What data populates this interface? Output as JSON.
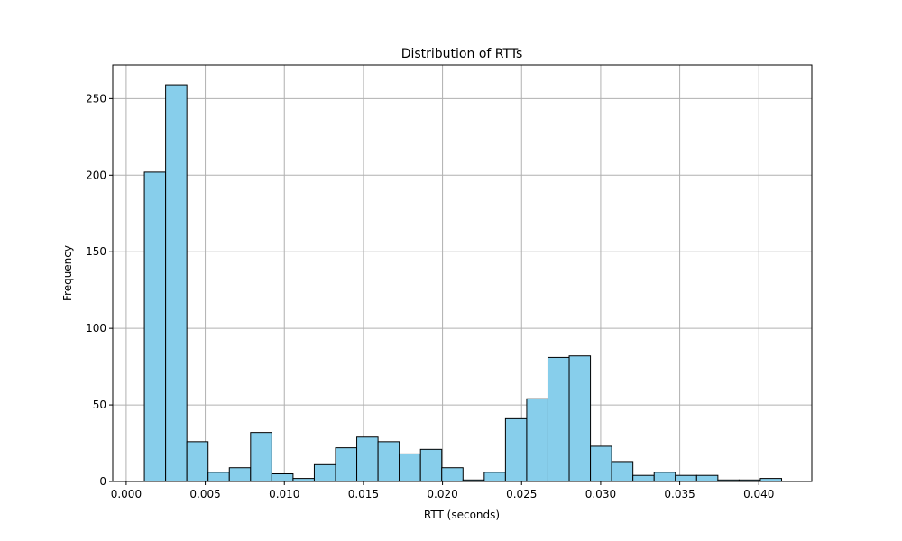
{
  "chart_data": {
    "type": "bar",
    "title": "Distribution of RTTs",
    "xlabel": "RTT (seconds)",
    "ylabel": "Frequency",
    "xlim": [
      -0.00085,
      0.04335
    ],
    "ylim": [
      0,
      272
    ],
    "x_ticks": [
      0.0,
      0.005,
      0.01,
      0.015,
      0.02,
      0.025,
      0.03,
      0.035,
      0.04
    ],
    "x_tick_labels": [
      "0.000",
      "0.005",
      "0.010",
      "0.015",
      "0.020",
      "0.025",
      "0.030",
      "0.035",
      "0.040"
    ],
    "y_ticks": [
      0,
      50,
      100,
      150,
      200,
      250
    ],
    "y_tick_labels": [
      "0",
      "50",
      "100",
      "150",
      "200",
      "250"
    ],
    "grid": true,
    "bar_color": "#87CEEB",
    "edge_color": "#000000",
    "bin_start": 0.00115,
    "bin_width": 0.001343,
    "values": [
      202,
      259,
      26,
      6,
      9,
      32,
      5,
      2,
      11,
      22,
      29,
      26,
      18,
      21,
      9,
      1,
      6,
      41,
      54,
      81,
      82,
      23,
      13,
      4,
      6,
      4,
      4,
      1,
      1,
      2
    ]
  }
}
